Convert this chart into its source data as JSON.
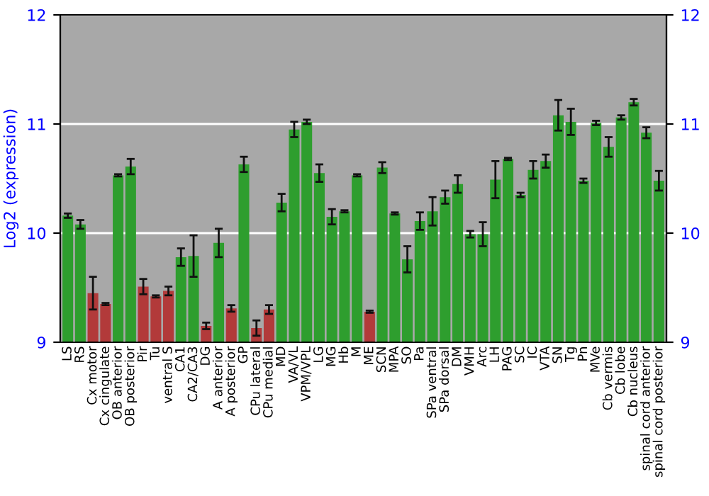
{
  "chart_data": {
    "type": "bar",
    "ylabel": "Log2 (expression)",
    "categories": [
      "LS",
      "RS",
      "Cx motor",
      "Cx cingulate",
      "OB anterior",
      "OB posterior",
      "Pir",
      "Tu",
      "ventral S",
      "CA1",
      "CA2/CA3",
      "DG",
      "A anterior",
      "A posterior",
      "GP",
      "CPu lateral",
      "CPu medial",
      "MD",
      "VA/VL",
      "VPM/VPL",
      "LG",
      "MG",
      "Hb",
      "M",
      "ME",
      "SCN",
      "MPA",
      "SO",
      "Pa",
      "SPa ventral",
      "SPa dorsal",
      "DM",
      "VMH",
      "Arc",
      "LH",
      "PAG",
      "SC",
      "IC",
      "VTA",
      "SN",
      "Tg",
      "Pn",
      "MVe",
      "Cb vermis",
      "Cb lobe",
      "Cb nucleus",
      "spinal cord anterior",
      "spinal cord posterior"
    ],
    "values": [
      10.16,
      10.08,
      9.45,
      9.35,
      10.53,
      10.61,
      9.51,
      9.42,
      9.47,
      9.78,
      9.79,
      9.15,
      9.91,
      9.31,
      10.63,
      9.13,
      9.3,
      10.28,
      10.95,
      11.02,
      10.55,
      10.15,
      10.2,
      10.53,
      9.28,
      10.6,
      10.18,
      9.76,
      10.11,
      10.2,
      10.33,
      10.45,
      9.99,
      9.99,
      10.49,
      10.68,
      10.35,
      10.58,
      10.66,
      11.08,
      11.02,
      10.48,
      11.01,
      10.79,
      11.06,
      11.2,
      10.92,
      10.48
    ],
    "errors": [
      0.02,
      0.04,
      0.15,
      0.01,
      0.01,
      0.07,
      0.07,
      0.01,
      0.04,
      0.08,
      0.19,
      0.03,
      0.13,
      0.03,
      0.07,
      0.07,
      0.04,
      0.08,
      0.07,
      0.02,
      0.08,
      0.07,
      0.01,
      0.01,
      0.01,
      0.05,
      0.01,
      0.12,
      0.08,
      0.13,
      0.06,
      0.08,
      0.03,
      0.11,
      0.17,
      0.01,
      0.02,
      0.08,
      0.06,
      0.14,
      0.12,
      0.02,
      0.02,
      0.09,
      0.02,
      0.03,
      0.05,
      0.09
    ],
    "colors": [
      "#2e9e2e",
      "#2e9e2e",
      "#b23a3a",
      "#b23a3a",
      "#2e9e2e",
      "#2e9e2e",
      "#b23a3a",
      "#b23a3a",
      "#b23a3a",
      "#2e9e2e",
      "#2e9e2e",
      "#b23a3a",
      "#2e9e2e",
      "#b23a3a",
      "#2e9e2e",
      "#b23a3a",
      "#b23a3a",
      "#2e9e2e",
      "#2e9e2e",
      "#2e9e2e",
      "#2e9e2e",
      "#2e9e2e",
      "#2e9e2e",
      "#2e9e2e",
      "#b23a3a",
      "#2e9e2e",
      "#2e9e2e",
      "#2e9e2e",
      "#2e9e2e",
      "#2e9e2e",
      "#2e9e2e",
      "#2e9e2e",
      "#2e9e2e",
      "#2e9e2e",
      "#2e9e2e",
      "#2e9e2e",
      "#2e9e2e",
      "#2e9e2e",
      "#2e9e2e",
      "#2e9e2e",
      "#2e9e2e",
      "#2e9e2e",
      "#2e9e2e",
      "#2e9e2e",
      "#2e9e2e",
      "#2e9e2e",
      "#2e9e2e",
      "#2e9e2e"
    ],
    "ylim": [
      9,
      12
    ],
    "yticks": [
      9,
      10,
      11,
      12
    ],
    "y2lim": [
      9,
      12
    ],
    "y2ticks": [
      9,
      10,
      11,
      12
    ],
    "grid": "y"
  }
}
